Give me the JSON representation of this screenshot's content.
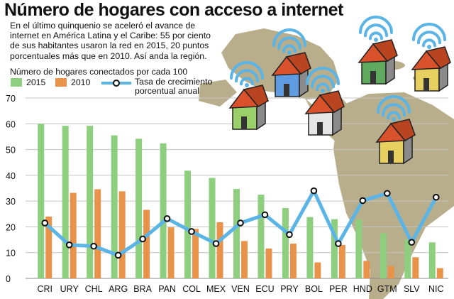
{
  "header": {
    "title": "Número de hogares con acceso a internet",
    "intro": "En el último quinquenio se aceleró el avance de internet en América Latina y el Caribe: 55 por ciento de sus habitantes usaron la red en 2015, 20 puntos porcentuales más que en 2010. Así anda la región."
  },
  "colors": {
    "c2015": "#8dcf7e",
    "c2010": "#e8924a",
    "rate_line": "#5bb4e6",
    "map": "#b9ae8c",
    "roof": "#d9522b",
    "wifi": "#5bb4e6"
  },
  "legend": {
    "ylabel": "Número de hogares conectados por cada 100",
    "s2015": "2015",
    "s2010": "2010",
    "rate_line1": "Tasa de crecimiento",
    "rate_line2": "porcentual anual"
  },
  "chart_data": {
    "type": "bar",
    "ylim": [
      0,
      70
    ],
    "yticks": [
      0,
      10,
      20,
      30,
      40,
      50,
      60,
      70
    ],
    "grid": true,
    "categories": [
      "CRI",
      "URY",
      "CHL",
      "ARG",
      "BRA",
      "PAN",
      "COL",
      "MEX",
      "VEN",
      "ECU",
      "PRY",
      "BOL",
      "PER",
      "HND",
      "GTM",
      "SLV",
      "NIC"
    ],
    "series": [
      {
        "name": "2015",
        "type": "bar",
        "values": [
          60.0,
          59.2,
          59.2,
          55.5,
          54.2,
          52.4,
          41.8,
          39.0,
          34.7,
          32.5,
          27.3,
          23.8,
          23.0,
          22.8,
          17.5,
          15.2,
          14.0
        ]
      },
      {
        "name": "2010",
        "type": "bar",
        "values": [
          24.0,
          33.2,
          34.6,
          33.8,
          26.6,
          19.8,
          19.2,
          21.8,
          14.5,
          11.6,
          13.5,
          6.2,
          13.0,
          6.8,
          4.8,
          8.2,
          4.0
        ]
      },
      {
        "name": "Tasa de crecimiento porcentual anual",
        "type": "line",
        "values": [
          21.5,
          13.0,
          12.5,
          9.0,
          15.3,
          23.2,
          18.2,
          13.5,
          21.5,
          24.7,
          17.0,
          34.0,
          13.5,
          30.2,
          33.0,
          14.0,
          31.5
        ]
      }
    ]
  }
}
